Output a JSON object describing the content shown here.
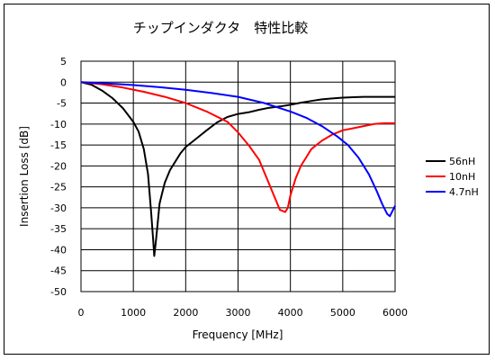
{
  "chart_data": {
    "type": "line",
    "title": "チップインダクタ　特性比較",
    "xlabel": "Frequency [MHz]",
    "ylabel": "Insertion Loss [dB]",
    "xlim": [
      0,
      6000
    ],
    "ylim": [
      -50,
      5
    ],
    "x_ticks": [
      0,
      1000,
      2000,
      3000,
      4000,
      5000,
      6000
    ],
    "y_ticks": [
      5,
      0,
      -5,
      -10,
      -15,
      -20,
      -25,
      -30,
      -35,
      -40,
      -45,
      -50
    ],
    "grid": true,
    "legend_position": "right",
    "series": [
      {
        "name": "56nH",
        "color": "#000000",
        "points": [
          [
            0,
            0
          ],
          [
            200,
            -0.6
          ],
          [
            400,
            -2
          ],
          [
            600,
            -3.8
          ],
          [
            800,
            -6.2
          ],
          [
            1000,
            -9.5
          ],
          [
            1100,
            -11.8
          ],
          [
            1200,
            -16
          ],
          [
            1280,
            -22
          ],
          [
            1340,
            -31
          ],
          [
            1380,
            -38
          ],
          [
            1400,
            -41.5
          ],
          [
            1430,
            -38
          ],
          [
            1470,
            -33
          ],
          [
            1500,
            -29
          ],
          [
            1540,
            -27
          ],
          [
            1600,
            -24
          ],
          [
            1700,
            -21
          ],
          [
            1800,
            -19
          ],
          [
            1900,
            -17
          ],
          [
            2000,
            -15.5
          ],
          [
            2200,
            -13.5
          ],
          [
            2400,
            -11.5
          ],
          [
            2600,
            -9.6
          ],
          [
            2800,
            -8.3
          ],
          [
            3000,
            -7.6
          ],
          [
            3200,
            -7.2
          ],
          [
            3400,
            -6.6
          ],
          [
            3600,
            -6.1
          ],
          [
            3800,
            -5.8
          ],
          [
            4000,
            -5.4
          ],
          [
            4200,
            -4.9
          ],
          [
            4400,
            -4.5
          ],
          [
            4600,
            -4.1
          ],
          [
            4800,
            -3.9
          ],
          [
            5000,
            -3.7
          ],
          [
            5200,
            -3.6
          ],
          [
            5400,
            -3.5
          ],
          [
            5600,
            -3.5
          ],
          [
            5800,
            -3.5
          ],
          [
            6000,
            -3.5
          ]
        ]
      },
      {
        "name": "10nH",
        "color": "#ff0000",
        "points": [
          [
            0,
            0
          ],
          [
            400,
            -0.5
          ],
          [
            800,
            -1.3
          ],
          [
            1200,
            -2.3
          ],
          [
            1600,
            -3.5
          ],
          [
            2000,
            -5
          ],
          [
            2400,
            -7
          ],
          [
            2800,
            -9.5
          ],
          [
            3000,
            -12
          ],
          [
            3200,
            -15
          ],
          [
            3400,
            -18.5
          ],
          [
            3550,
            -23
          ],
          [
            3650,
            -26
          ],
          [
            3750,
            -29
          ],
          [
            3800,
            -30.5
          ],
          [
            3900,
            -31
          ],
          [
            3950,
            -30
          ],
          [
            4000,
            -27
          ],
          [
            4100,
            -23
          ],
          [
            4200,
            -20
          ],
          [
            4300,
            -18
          ],
          [
            4400,
            -16
          ],
          [
            4600,
            -14
          ],
          [
            4800,
            -12.5
          ],
          [
            5000,
            -11.5
          ],
          [
            5200,
            -11
          ],
          [
            5400,
            -10.5
          ],
          [
            5600,
            -10
          ],
          [
            5800,
            -9.8
          ],
          [
            6000,
            -9.8
          ]
        ]
      },
      {
        "name": "4.7nH",
        "color": "#0000ff",
        "points": [
          [
            0,
            0
          ],
          [
            500,
            -0.3
          ],
          [
            1000,
            -0.7
          ],
          [
            1500,
            -1.2
          ],
          [
            2000,
            -1.8
          ],
          [
            2500,
            -2.6
          ],
          [
            3000,
            -3.5
          ],
          [
            3500,
            -5
          ],
          [
            4000,
            -7
          ],
          [
            4300,
            -8.5
          ],
          [
            4600,
            -10.5
          ],
          [
            4900,
            -13
          ],
          [
            5100,
            -15
          ],
          [
            5300,
            -18
          ],
          [
            5500,
            -22
          ],
          [
            5650,
            -26
          ],
          [
            5750,
            -29
          ],
          [
            5850,
            -31.5
          ],
          [
            5900,
            -32
          ],
          [
            6000,
            -29.5
          ]
        ]
      }
    ]
  }
}
